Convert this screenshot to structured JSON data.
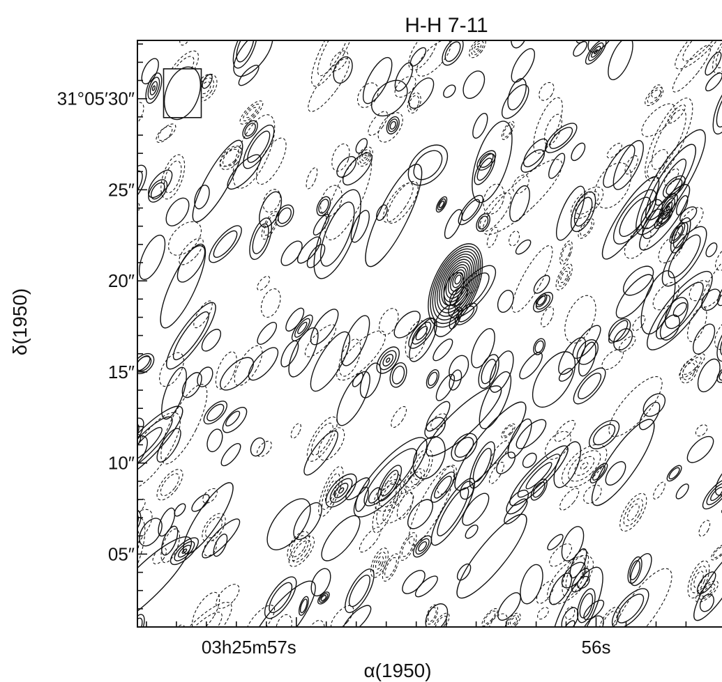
{
  "chart_data": {
    "type": "contour",
    "title": "H-H 7-11",
    "xlabel": "α(1950)",
    "ylabel": "δ(1950)",
    "x_ticks": [
      {
        "label": "03h25m57s",
        "sec": 57.0
      },
      {
        "label": "56s",
        "sec": 56.0
      }
    ],
    "y_ticks": [
      {
        "label": "31°05′30″",
        "arcsec": 30
      },
      {
        "label": "25″",
        "arcsec": 25
      },
      {
        "label": "20″",
        "arcsec": 20
      },
      {
        "label": "15″",
        "arcsec": 15
      },
      {
        "label": "10″",
        "arcsec": 10
      },
      {
        "label": "05″",
        "arcsec": 5
      }
    ],
    "xlim_sec": [
      57.53,
      55.58
    ],
    "ylim_arcsec": [
      1,
      33.2
    ],
    "beam": {
      "x_sec": 57.38,
      "y_arcsec": 30.3,
      "major_arcsec": 3.0,
      "minor_arcsec": 1.8,
      "pa_deg": 20
    },
    "peak_source": {
      "x_sec": 56.46,
      "y_arcsec": 20.1,
      "levels": 13
    },
    "grid": false,
    "colors": {
      "ink": "#111111"
    }
  }
}
